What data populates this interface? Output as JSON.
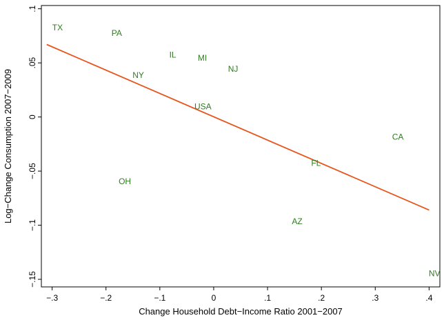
{
  "chart_data": {
    "type": "scatter",
    "xlabel": "Change Household Debt−Income Ratio 2001−2007",
    "ylabel": "Log−Change Consumption 2007−2009",
    "xlim": [
      -0.32,
      0.42
    ],
    "ylim": [
      -0.157,
      0.103
    ],
    "x_ticks": [
      -0.3,
      -0.2,
      -0.1,
      0,
      0.1,
      0.2,
      0.3,
      0.4
    ],
    "x_tick_labels": [
      "−.3",
      "−.2",
      "−.1",
      "0",
      ".1",
      ".2",
      ".3",
      ".4"
    ],
    "y_ticks": [
      -0.15,
      -0.1,
      -0.05,
      0,
      0.05,
      0.1
    ],
    "y_tick_labels": [
      "−.15",
      "−.1",
      "−.05",
      "0",
      ".05",
      ".1"
    ],
    "grid": false,
    "points": [
      {
        "label": "TX",
        "x": -0.29,
        "y": 0.082
      },
      {
        "label": "PA",
        "x": -0.18,
        "y": 0.077
      },
      {
        "label": "IL",
        "x": -0.076,
        "y": 0.057
      },
      {
        "label": "MI",
        "x": -0.021,
        "y": 0.054
      },
      {
        "label": "NJ",
        "x": 0.036,
        "y": 0.044
      },
      {
        "label": "NY",
        "x": -0.14,
        "y": 0.038
      },
      {
        "label": "USA",
        "x": -0.02,
        "y": 0.009
      },
      {
        "label": "CA",
        "x": 0.342,
        "y": -0.019
      },
      {
        "label": "FL",
        "x": 0.19,
        "y": -0.043
      },
      {
        "label": "OH",
        "x": -0.165,
        "y": -0.06
      },
      {
        "label": "AZ",
        "x": 0.155,
        "y": -0.097
      },
      {
        "label": "NV",
        "x": 0.41,
        "y": -0.145
      }
    ],
    "fit_line": {
      "x": [
        -0.31,
        0.4
      ],
      "y": [
        0.067,
        -0.086
      ]
    },
    "colors": {
      "points": "#2e7d1e",
      "fit_line": "#e8541c",
      "axes": "#000000"
    }
  }
}
